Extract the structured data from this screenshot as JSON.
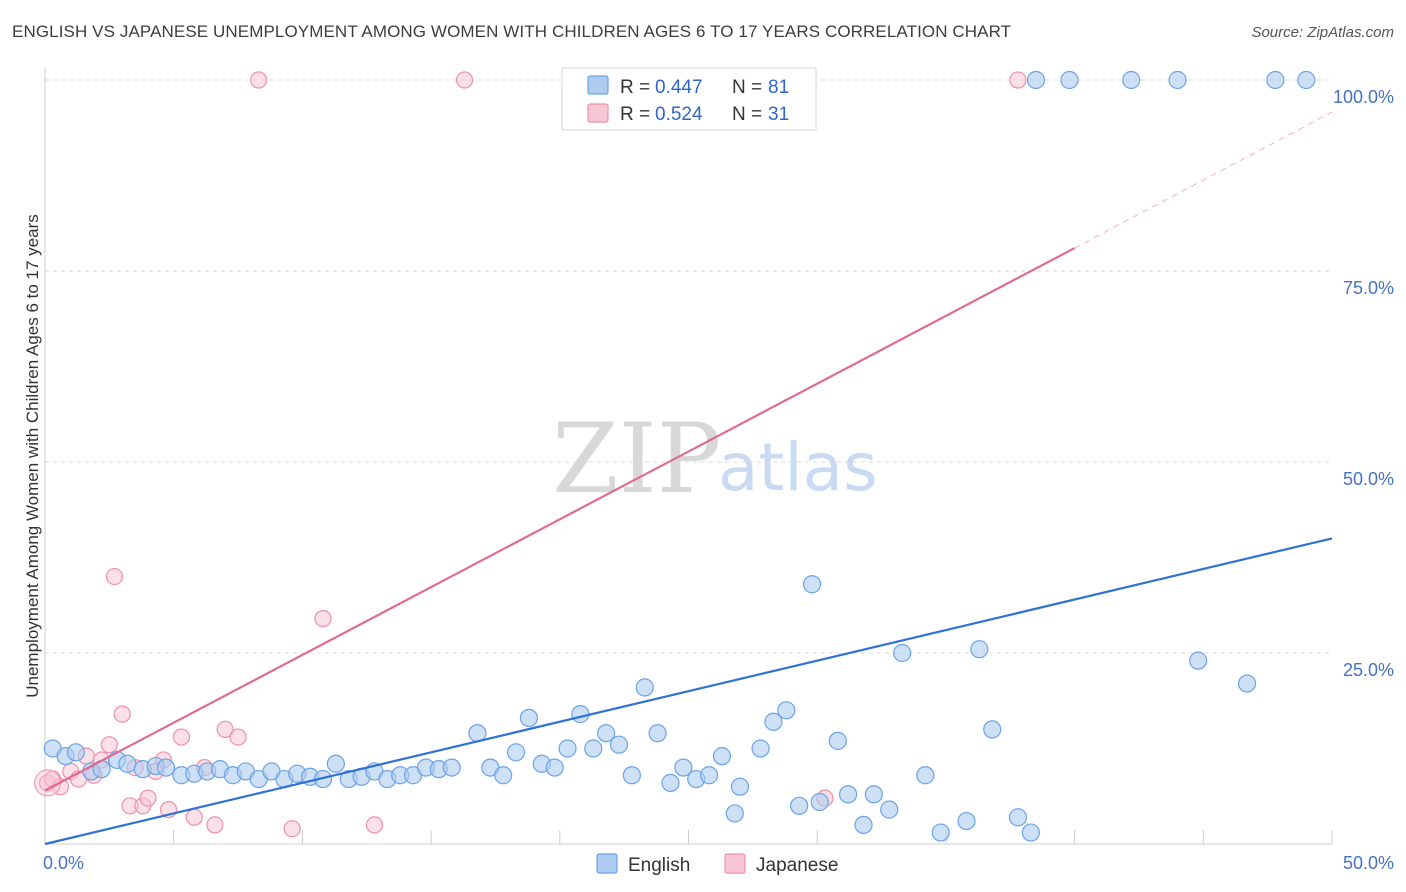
{
  "header": {
    "title": "ENGLISH VS JAPANESE UNEMPLOYMENT AMONG WOMEN WITH CHILDREN AGES 6 TO 17 YEARS CORRELATION CHART",
    "source": "Source: ZipAtlas.com"
  },
  "watermark": {
    "zip": "ZIP",
    "atlas": "atlas"
  },
  "colors": {
    "english": "#6aa3e8",
    "english_fill": "#aecbf0",
    "english_line": "#2f72d6",
    "japanese": "#ee90ab",
    "japanese_fill": "#f7c6d4",
    "japanese_line": "#e06b92",
    "grid": "#d8d8d8",
    "tick_text": "#4472c4"
  },
  "legend": {
    "english": {
      "r_label": "R = ",
      "r_value": "0.447",
      "n_label": "N = ",
      "n_value": "81"
    },
    "japanese": {
      "r_label": "R = ",
      "r_value": "0.524",
      "n_label": "N = ",
      "n_value": "31"
    }
  },
  "chart_data": {
    "type": "scatter",
    "title": "ENGLISH VS JAPANESE UNEMPLOYMENT AMONG WOMEN WITH CHILDREN AGES 6 TO 17 YEARS CORRELATION CHART",
    "xlabel": "",
    "ylabel": "Unemployment Among Women with Children Ages 6 to 17 years",
    "xlim": [
      0,
      50
    ],
    "ylim": [
      0,
      100
    ],
    "x_tick_labels": [
      "0.0%",
      "50.0%"
    ],
    "y_tick_labels": [
      {
        "value": 100,
        "label": "100.0%"
      },
      {
        "value": 75,
        "label": "75.0%"
      },
      {
        "value": 50,
        "label": "50.0%"
      },
      {
        "value": 25,
        "label": "25.0%"
      }
    ],
    "grid": true,
    "legend_position": "top-center",
    "series": [
      {
        "name": "English",
        "R": 0.447,
        "N": 81,
        "trend": {
          "x": [
            0,
            50
          ],
          "y": [
            0,
            40.0
          ]
        },
        "points": [
          [
            0.3,
            12.5
          ],
          [
            0.8,
            11.5
          ],
          [
            1.2,
            12.0
          ],
          [
            1.8,
            9.5
          ],
          [
            2.2,
            9.8
          ],
          [
            2.8,
            11.0
          ],
          [
            3.2,
            10.5
          ],
          [
            3.8,
            9.8
          ],
          [
            4.3,
            10.2
          ],
          [
            4.7,
            10.0
          ],
          [
            5.3,
            9.0
          ],
          [
            5.8,
            9.2
          ],
          [
            6.3,
            9.5
          ],
          [
            6.8,
            9.8
          ],
          [
            7.3,
            9.0
          ],
          [
            7.8,
            9.5
          ],
          [
            8.3,
            8.5
          ],
          [
            8.8,
            9.5
          ],
          [
            9.3,
            8.5
          ],
          [
            9.8,
            9.2
          ],
          [
            10.3,
            8.8
          ],
          [
            10.8,
            8.5
          ],
          [
            11.3,
            10.5
          ],
          [
            11.8,
            8.5
          ],
          [
            12.3,
            8.8
          ],
          [
            12.8,
            9.5
          ],
          [
            13.3,
            8.5
          ],
          [
            13.8,
            9.0
          ],
          [
            14.3,
            9.0
          ],
          [
            14.8,
            10.0
          ],
          [
            15.3,
            9.8
          ],
          [
            15.8,
            10.0
          ],
          [
            16.8,
            14.5
          ],
          [
            17.3,
            10.0
          ],
          [
            17.8,
            9.0
          ],
          [
            18.3,
            12.0
          ],
          [
            18.8,
            16.5
          ],
          [
            19.3,
            10.5
          ],
          [
            19.8,
            10.0
          ],
          [
            20.3,
            12.5
          ],
          [
            20.8,
            17.0
          ],
          [
            21.3,
            12.5
          ],
          [
            21.8,
            14.5
          ],
          [
            22.3,
            13.0
          ],
          [
            22.8,
            9.0
          ],
          [
            23.3,
            20.5
          ],
          [
            23.8,
            14.5
          ],
          [
            24.3,
            8.0
          ],
          [
            24.8,
            10.0
          ],
          [
            25.3,
            8.5
          ],
          [
            25.8,
            9.0
          ],
          [
            26.3,
            11.5
          ],
          [
            26.8,
            4.0
          ],
          [
            27.0,
            7.5
          ],
          [
            27.8,
            12.5
          ],
          [
            28.3,
            16.0
          ],
          [
            28.8,
            17.5
          ],
          [
            29.3,
            5.0
          ],
          [
            29.8,
            34.0
          ],
          [
            30.1,
            5.5
          ],
          [
            30.8,
            13.5
          ],
          [
            31.2,
            6.5
          ],
          [
            31.8,
            2.5
          ],
          [
            32.2,
            6.5
          ],
          [
            32.8,
            4.5
          ],
          [
            33.3,
            25.0
          ],
          [
            34.2,
            9.0
          ],
          [
            34.8,
            1.5
          ],
          [
            35.8,
            3.0
          ],
          [
            36.3,
            25.5
          ],
          [
            36.8,
            15.0
          ],
          [
            37.8,
            3.5
          ],
          [
            38.3,
            1.5
          ],
          [
            39.8,
            100.0
          ],
          [
            42.2,
            100.0
          ],
          [
            44.0,
            100.0
          ],
          [
            47.8,
            100.0
          ],
          [
            38.5,
            100.0
          ],
          [
            44.8,
            24.0
          ],
          [
            46.7,
            21.0
          ],
          [
            49.0,
            100.0
          ]
        ]
      },
      {
        "name": "Japanese",
        "R": 0.524,
        "N": 31,
        "trend": {
          "x": [
            0,
            40
          ],
          "y": [
            7.0,
            78.0
          ]
        },
        "trend_dashed_extension": {
          "x": [
            40,
            50
          ],
          "y": [
            78.0,
            95.8
          ]
        },
        "points": [
          [
            0.1,
            8.0
          ],
          [
            0.3,
            8.5
          ],
          [
            0.6,
            7.5
          ],
          [
            1.0,
            9.5
          ],
          [
            1.3,
            8.5
          ],
          [
            1.6,
            11.5
          ],
          [
            1.9,
            9.0
          ],
          [
            2.2,
            11.0
          ],
          [
            2.5,
            13.0
          ],
          [
            2.7,
            35.0
          ],
          [
            3.0,
            17.0
          ],
          [
            3.3,
            5.0
          ],
          [
            3.5,
            10.0
          ],
          [
            3.8,
            5.0
          ],
          [
            4.0,
            6.0
          ],
          [
            4.3,
            9.5
          ],
          [
            4.6,
            11.0
          ],
          [
            4.8,
            4.5
          ],
          [
            5.3,
            14.0
          ],
          [
            5.8,
            3.5
          ],
          [
            6.2,
            10.0
          ],
          [
            6.6,
            2.5
          ],
          [
            7.0,
            15.0
          ],
          [
            7.5,
            14.0
          ],
          [
            8.3,
            100.0
          ],
          [
            9.6,
            2.0
          ],
          [
            10.8,
            29.5
          ],
          [
            12.8,
            2.5
          ],
          [
            16.3,
            100.0
          ],
          [
            30.3,
            6.0
          ],
          [
            37.8,
            100.0
          ]
        ]
      }
    ]
  }
}
